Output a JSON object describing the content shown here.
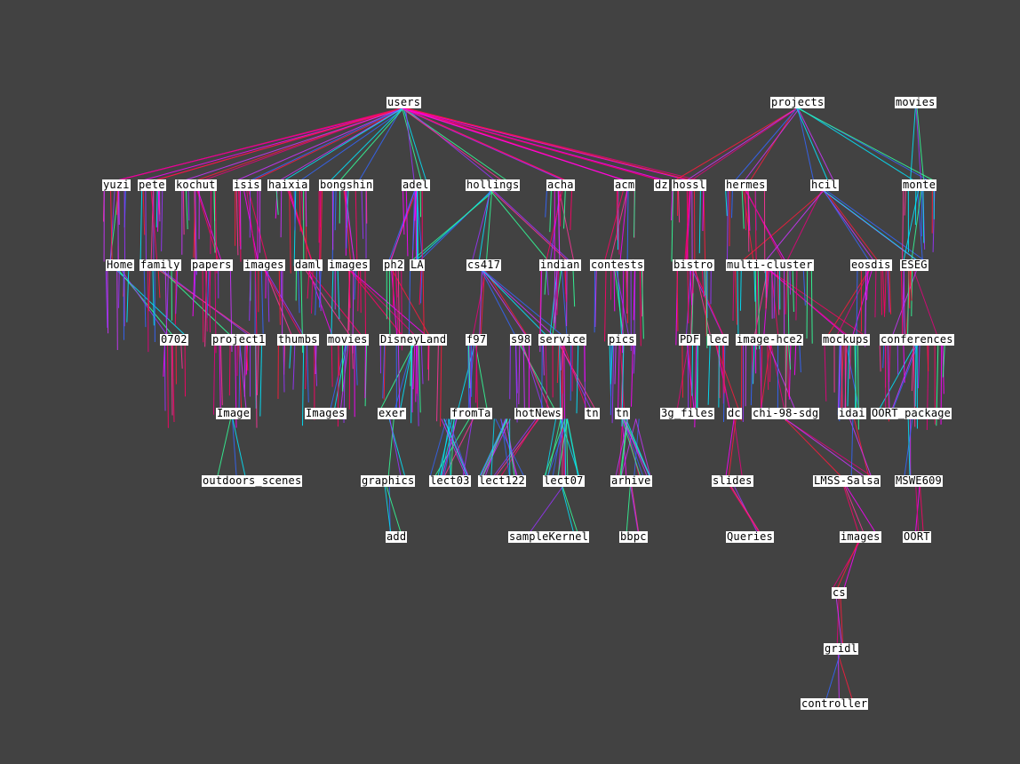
{
  "colors": {
    "background": "#424242",
    "label_bg": "#ffffff",
    "label_text": "#000000",
    "edge_palette": [
      "#ff0066",
      "#ff00ff",
      "#e6007e",
      "#ff1a3c",
      "#cc33ff",
      "#3366ff",
      "#00e6ff",
      "#33ff99",
      "#9933ff",
      "#ff3399"
    ]
  },
  "nodes": [
    {
      "id": "users",
      "label": "users"
    },
    {
      "id": "projects",
      "label": "projects"
    },
    {
      "id": "movies_root",
      "label": "movies"
    },
    {
      "id": "yuzi",
      "label": "yuzi"
    },
    {
      "id": "pete",
      "label": "pete"
    },
    {
      "id": "kochut",
      "label": "kochut"
    },
    {
      "id": "isis",
      "label": "isis"
    },
    {
      "id": "haixia",
      "label": "haixia"
    },
    {
      "id": "bongshin",
      "label": "bongshin"
    },
    {
      "id": "adel",
      "label": "adel"
    },
    {
      "id": "hollings",
      "label": "hollings"
    },
    {
      "id": "acha",
      "label": "acha"
    },
    {
      "id": "acm",
      "label": "acm"
    },
    {
      "id": "dz",
      "label": "dz"
    },
    {
      "id": "hossl",
      "label": "hossl"
    },
    {
      "id": "hermes",
      "label": "hermes"
    },
    {
      "id": "hcil",
      "label": "hcil"
    },
    {
      "id": "monte",
      "label": "monte"
    },
    {
      "id": "Home",
      "label": "Home"
    },
    {
      "id": "family",
      "label": "family"
    },
    {
      "id": "papers",
      "label": "papers"
    },
    {
      "id": "images1",
      "label": "images"
    },
    {
      "id": "daml",
      "label": "daml"
    },
    {
      "id": "images2",
      "label": "images"
    },
    {
      "id": "ph2",
      "label": "ph2"
    },
    {
      "id": "LA",
      "label": "LA"
    },
    {
      "id": "cs417",
      "label": "cs417"
    },
    {
      "id": "indian",
      "label": "indian"
    },
    {
      "id": "contests",
      "label": "contests"
    },
    {
      "id": "bistro",
      "label": "bistro"
    },
    {
      "id": "multicluster",
      "label": "multi-cluster"
    },
    {
      "id": "eosdis",
      "label": "eosdis"
    },
    {
      "id": "ESEG",
      "label": "ESEG"
    },
    {
      "id": "0702",
      "label": "0702"
    },
    {
      "id": "project1",
      "label": "project1"
    },
    {
      "id": "thumbs",
      "label": "thumbs"
    },
    {
      "id": "movies2",
      "label": "movies"
    },
    {
      "id": "DisneyLand",
      "label": "DisneyLand"
    },
    {
      "id": "f97",
      "label": "f97"
    },
    {
      "id": "s98",
      "label": "s98"
    },
    {
      "id": "service",
      "label": "service"
    },
    {
      "id": "pics",
      "label": "pics"
    },
    {
      "id": "PDF",
      "label": "PDF"
    },
    {
      "id": "lec",
      "label": "lec"
    },
    {
      "id": "imagehce2",
      "label": "image-hce2"
    },
    {
      "id": "mockups",
      "label": "mockups"
    },
    {
      "id": "conferences",
      "label": "conferences"
    },
    {
      "id": "Image",
      "label": "Image"
    },
    {
      "id": "Images",
      "label": "Images"
    },
    {
      "id": "exer",
      "label": "exer"
    },
    {
      "id": "fromTa",
      "label": "fromTa"
    },
    {
      "id": "hotNews",
      "label": "hotNews"
    },
    {
      "id": "tn1",
      "label": "tn"
    },
    {
      "id": "tn2",
      "label": "tn"
    },
    {
      "id": "3g_files",
      "label": "3g_files"
    },
    {
      "id": "dc",
      "label": "dc"
    },
    {
      "id": "chi98sdg",
      "label": "chi-98-sdg"
    },
    {
      "id": "idai",
      "label": "idai"
    },
    {
      "id": "OORT_package",
      "label": "OORT_package"
    },
    {
      "id": "outdoors_scenes",
      "label": "outdoors_scenes"
    },
    {
      "id": "graphics",
      "label": "graphics"
    },
    {
      "id": "lect03",
      "label": "lect03"
    },
    {
      "id": "lect122",
      "label": "lect122"
    },
    {
      "id": "lect07",
      "label": "lect07"
    },
    {
      "id": "arhive",
      "label": "arhive"
    },
    {
      "id": "slides",
      "label": "slides"
    },
    {
      "id": "LMSS",
      "label": "LMSS-Salsa"
    },
    {
      "id": "MSWE609",
      "label": "MSWE609"
    },
    {
      "id": "add",
      "label": "add"
    },
    {
      "id": "sampleKernel",
      "label": "sampleKernel"
    },
    {
      "id": "bbpc",
      "label": "bbpc"
    },
    {
      "id": "Queries",
      "label": "Queries"
    },
    {
      "id": "images3",
      "label": "images"
    },
    {
      "id": "OORT",
      "label": "OORT"
    },
    {
      "id": "cs",
      "label": "cs"
    },
    {
      "id": "gridl",
      "label": "gridl"
    },
    {
      "id": "controller",
      "label": "controller"
    }
  ],
  "edges": [
    [
      "users",
      "yuzi"
    ],
    [
      "users",
      "pete"
    ],
    [
      "users",
      "kochut"
    ],
    [
      "users",
      "isis"
    ],
    [
      "users",
      "haixia"
    ],
    [
      "users",
      "bongshin"
    ],
    [
      "users",
      "adel"
    ],
    [
      "users",
      "hollings"
    ],
    [
      "users",
      "acha"
    ],
    [
      "users",
      "acm"
    ],
    [
      "users",
      "dz"
    ],
    [
      "users",
      "hossl"
    ],
    [
      "projects",
      "hossl"
    ],
    [
      "projects",
      "hermes"
    ],
    [
      "projects",
      "hcil"
    ],
    [
      "projects",
      "monte"
    ],
    [
      "movies_root",
      "monte"
    ],
    [
      "yuzi",
      "Home"
    ],
    [
      "pete",
      "family"
    ],
    [
      "kochut",
      "papers"
    ],
    [
      "isis",
      "images1"
    ],
    [
      "haixia",
      "daml"
    ],
    [
      "bongshin",
      "images2"
    ],
    [
      "adel",
      "ph2"
    ],
    [
      "adel",
      "LA"
    ],
    [
      "hollings",
      "LA"
    ],
    [
      "hollings",
      "cs417"
    ],
    [
      "hollings",
      "indian"
    ],
    [
      "acha",
      "indian"
    ],
    [
      "acm",
      "contests"
    ],
    [
      "hossl",
      "bistro"
    ],
    [
      "hermes",
      "multicluster"
    ],
    [
      "hcil",
      "multicluster"
    ],
    [
      "hcil",
      "eosdis"
    ],
    [
      "hcil",
      "ESEG"
    ],
    [
      "monte",
      "ESEG"
    ],
    [
      "Home",
      "0702"
    ],
    [
      "family",
      "project1"
    ],
    [
      "images1",
      "thumbs"
    ],
    [
      "daml",
      "movies2"
    ],
    [
      "images2",
      "DisneyLand"
    ],
    [
      "ph2",
      "DisneyLand"
    ],
    [
      "cs417",
      "f97"
    ],
    [
      "cs417",
      "s98"
    ],
    [
      "cs417",
      "service"
    ],
    [
      "indian",
      "service"
    ],
    [
      "contests",
      "pics"
    ],
    [
      "bistro",
      "PDF"
    ],
    [
      "bistro",
      "lec"
    ],
    [
      "multicluster",
      "imagehce2"
    ],
    [
      "multicluster",
      "mockups"
    ],
    [
      "eosdis",
      "mockups"
    ],
    [
      "ESEG",
      "conferences"
    ],
    [
      "project1",
      "Image"
    ],
    [
      "movies2",
      "Images"
    ],
    [
      "DisneyLand",
      "exer"
    ],
    [
      "f97",
      "fromTa"
    ],
    [
      "s98",
      "hotNews"
    ],
    [
      "service",
      "tn1"
    ],
    [
      "pics",
      "tn2"
    ],
    [
      "PDF",
      "3g_files"
    ],
    [
      "lec",
      "dc"
    ],
    [
      "imagehce2",
      "chi98sdg"
    ],
    [
      "mockups",
      "idai"
    ],
    [
      "conferences",
      "OORT_package"
    ],
    [
      "Image",
      "outdoors_scenes"
    ],
    [
      "exer",
      "graphics"
    ],
    [
      "fromTa",
      "lect03"
    ],
    [
      "hotNews",
      "lect122"
    ],
    [
      "service",
      "lect07"
    ],
    [
      "tn2",
      "arhive"
    ],
    [
      "dc",
      "slides"
    ],
    [
      "chi98sdg",
      "LMSS"
    ],
    [
      "idai",
      "LMSS"
    ],
    [
      "OORT_package",
      "MSWE609"
    ],
    [
      "graphics",
      "add"
    ],
    [
      "lect07",
      "sampleKernel"
    ],
    [
      "arhive",
      "bbpc"
    ],
    [
      "slides",
      "Queries"
    ],
    [
      "LMSS",
      "images3"
    ],
    [
      "MSWE609",
      "OORT"
    ],
    [
      "images3",
      "cs"
    ],
    [
      "cs",
      "gridl"
    ],
    [
      "gridl",
      "controller"
    ]
  ]
}
